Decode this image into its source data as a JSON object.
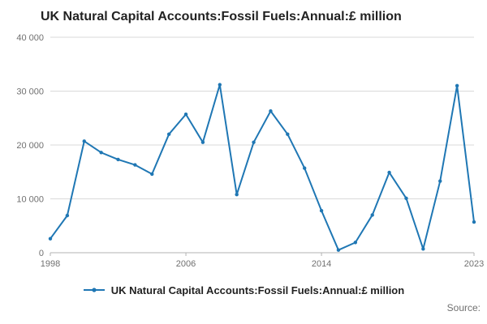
{
  "header": {
    "title": "UK Natural Capital Accounts:Fossil Fuels:Annual:£ million"
  },
  "legend": {
    "label": "UK Natural Capital Accounts:Fossil Fuels:Annual:£ million"
  },
  "source": {
    "label": "Source:"
  },
  "chart_data": {
    "type": "line",
    "title": "UK Natural Capital Accounts:Fossil Fuels:Annual:£ million",
    "x": [
      1998,
      1999,
      2000,
      2001,
      2002,
      2003,
      2004,
      2005,
      2006,
      2007,
      2008,
      2009,
      2010,
      2011,
      2012,
      2013,
      2014,
      2015,
      2016,
      2017,
      2018,
      2019,
      2020,
      2021,
      2022,
      2023
    ],
    "values": [
      2600,
      6900,
      20700,
      18600,
      17300,
      16300,
      14600,
      22000,
      25700,
      20500,
      31200,
      10800,
      20500,
      26300,
      22000,
      15700,
      7800,
      500,
      1900,
      7000,
      14900,
      10100,
      700,
      13300,
      31000,
      5700
    ],
    "xlabel": "",
    "ylabel": "",
    "ylim": [
      0,
      40000
    ],
    "yticks": [
      0,
      10000,
      20000,
      30000,
      40000
    ],
    "ytick_labels": [
      "0",
      "10 000",
      "20 000",
      "30 000",
      "40 000"
    ],
    "xticks": [
      1998,
      2006,
      2014,
      2023
    ],
    "line_color": "#1f77b4",
    "grid_color": "#d9d9d9",
    "axis_color": "#b3b3b3",
    "tick_label_color": "#707070",
    "grid": true,
    "legend_position": "bottom",
    "marker": "circle"
  }
}
